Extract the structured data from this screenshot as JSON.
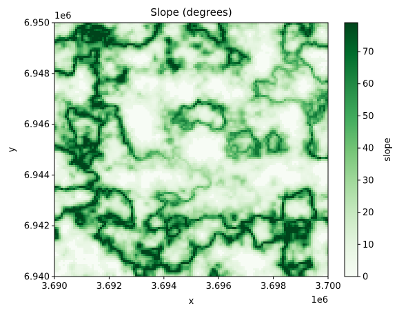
{
  "chart_data": {
    "type": "heatmap",
    "title": "Slope (degrees)",
    "xlabel": "x",
    "ylabel": "y",
    "x_offset_label": "1e6",
    "y_offset_label": "1e6",
    "xlim": [
      3.69,
      3.7
    ],
    "ylim": [
      6.94,
      6.95
    ],
    "x_ticks": [
      3.69,
      3.692,
      3.694,
      3.696,
      3.698,
      3.7
    ],
    "x_tick_labels": [
      "3.690",
      "3.692",
      "3.694",
      "3.696",
      "3.698",
      "3.700"
    ],
    "y_ticks": [
      6.94,
      6.942,
      6.944,
      6.946,
      6.948,
      6.95
    ],
    "y_tick_labels": [
      "6.940",
      "6.942",
      "6.944",
      "6.946",
      "6.948",
      "6.950"
    ],
    "colormap": "Greens",
    "colorbar": {
      "label": "slope",
      "range": [
        0,
        79
      ],
      "ticks": [
        0,
        10,
        20,
        30,
        40,
        50,
        60,
        70
      ],
      "tick_labels": [
        "0",
        "10",
        "20",
        "30",
        "40",
        "50",
        "60",
        "70"
      ]
    },
    "grid": false
  }
}
